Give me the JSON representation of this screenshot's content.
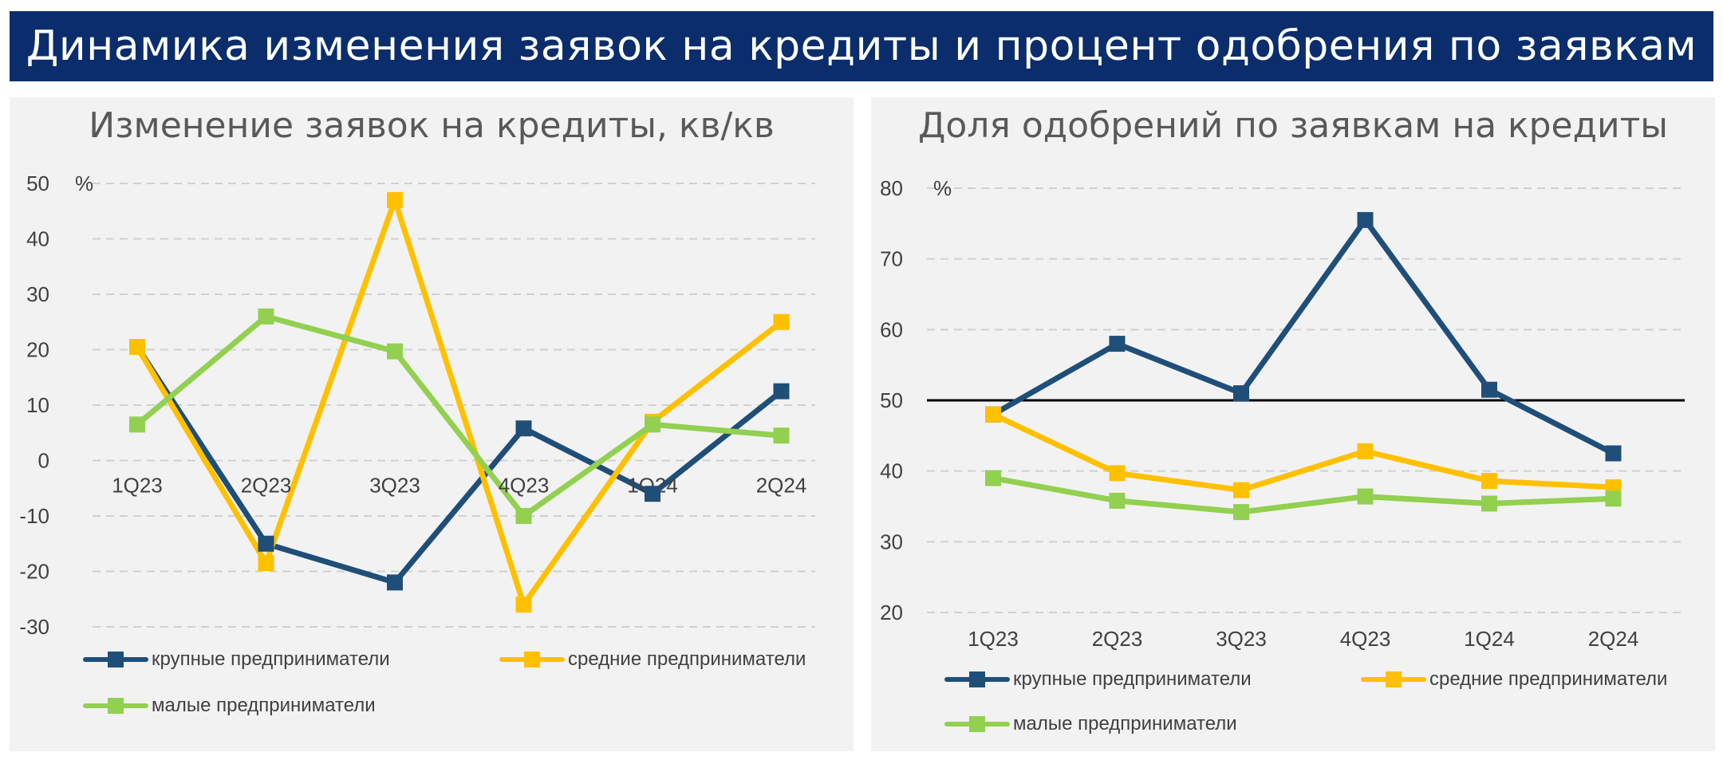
{
  "page_title": "Динамика изменения заявок на кредиты и процент одобрения по заявкам",
  "colors": {
    "banner": "#0b2d6b",
    "large": "#1f4e79",
    "medium": "#ffc000",
    "small": "#92d050"
  },
  "chart_data": [
    {
      "type": "line",
      "title": "Изменение заявок на кредиты, кв/кв",
      "unit": "%",
      "categories": [
        "1Q23",
        "2Q23",
        "3Q23",
        "4Q23",
        "1Q24",
        "2Q24"
      ],
      "ylim": [
        -30,
        50
      ],
      "yticks": [
        50,
        40,
        30,
        20,
        10,
        0,
        -10,
        -20,
        -30
      ],
      "grid": true,
      "legend_position": "bottom",
      "series": [
        {
          "name": "крупные предприниматели",
          "color": "#1f4e79",
          "values": [
            20.5,
            -15,
            -22,
            5.8,
            -6,
            12.5
          ]
        },
        {
          "name": "средние предприниматели",
          "color": "#ffc000",
          "values": [
            20.5,
            -18.5,
            47,
            -26,
            7,
            25
          ]
        },
        {
          "name": "малые предприниматели",
          "color": "#92d050",
          "values": [
            6.5,
            26,
            19.7,
            -10,
            6.5,
            4.5
          ]
        }
      ]
    },
    {
      "type": "line",
      "title": "Доля одобрений по заявкам на кредиты",
      "unit": "%",
      "categories": [
        "1Q23",
        "2Q23",
        "3Q23",
        "4Q23",
        "1Q24",
        "2Q24"
      ],
      "ylim": [
        20,
        80
      ],
      "yticks": [
        80,
        70,
        60,
        50,
        40,
        30,
        20
      ],
      "reference_line": 50,
      "grid": true,
      "legend_position": "bottom",
      "series": [
        {
          "name": "крупные предприниматели",
          "color": "#1f4e79",
          "values": [
            48,
            58,
            51,
            75.5,
            51.5,
            42.5
          ]
        },
        {
          "name": "средние предприниматели",
          "color": "#ffc000",
          "values": [
            48,
            39.7,
            37.3,
            42.8,
            38.6,
            37.7
          ]
        },
        {
          "name": "малые предприниматели",
          "color": "#92d050",
          "values": [
            39,
            35.8,
            34.2,
            36.4,
            35.4,
            36.1
          ]
        }
      ]
    }
  ]
}
